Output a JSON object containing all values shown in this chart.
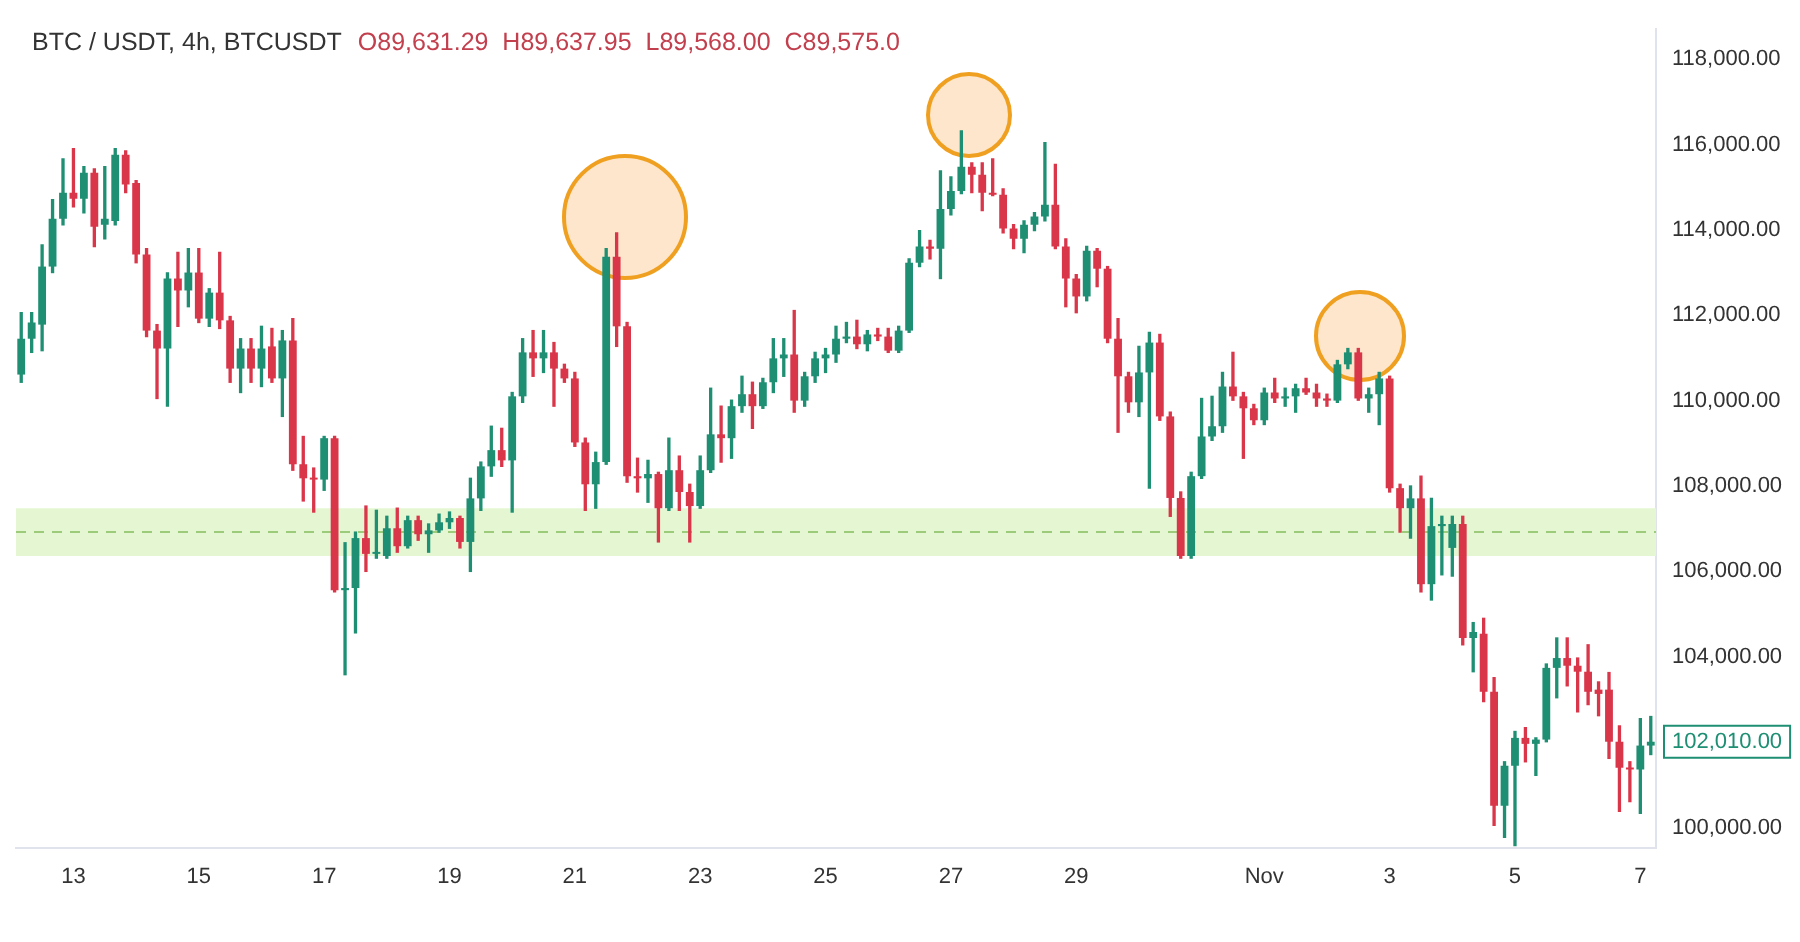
{
  "chart_data": {
    "type": "candlestick",
    "title": "BTC / USDT, 4h, BTCUSDT",
    "subtitle": "O89,631.29  H89,637.95  L89,568.00  C89,575.0",
    "categories": [
      null,
      null,
      null,
      null,
      null,
      "13",
      null,
      null,
      null,
      null,
      null,
      null,
      null,
      null,
      null,
      null,
      null,
      "15",
      null,
      null,
      null,
      null,
      null,
      null,
      null,
      null,
      null,
      null,
      null,
      "17",
      null,
      null,
      null,
      null,
      null,
      null,
      null,
      null,
      null,
      null,
      null,
      "19",
      null,
      null,
      null,
      null,
      null,
      null,
      null,
      null,
      null,
      null,
      null,
      "21",
      null,
      null,
      null,
      null,
      null,
      null,
      null,
      null,
      null,
      null,
      null,
      "23",
      null,
      null,
      null,
      null,
      null,
      null,
      null,
      null,
      null,
      null,
      null,
      "25",
      null,
      null,
      null,
      null,
      null,
      null,
      null,
      null,
      null,
      null,
      null,
      "27",
      null,
      null,
      null,
      null,
      null,
      null,
      null,
      null,
      null,
      null,
      null,
      "29",
      null,
      null,
      null,
      null,
      null,
      null,
      null,
      null,
      null,
      null,
      null,
      null,
      null,
      null,
      null,
      null,
      null,
      "Nov",
      null,
      null,
      null,
      null,
      null,
      null,
      null,
      null,
      null,
      null,
      null,
      "3",
      null,
      null,
      null,
      null,
      null,
      null,
      null,
      null,
      null,
      null,
      null,
      "5",
      null,
      null,
      null,
      null,
      null,
      null,
      null,
      null,
      null,
      null,
      null,
      "7",
      null
    ],
    "colors": [
      "#1f8f73",
      "#1f8f73",
      "#1f8f73",
      "#1f8f73",
      "#1f8f73",
      "#d9364a",
      "#1f8f73",
      "#d9364a",
      "#1f8f73",
      "#1f8f73",
      "#d9364a",
      "#d9364a",
      "#d9364a",
      "#d9364a",
      "#1f8f73",
      "#d9364a",
      "#1f8f73",
      "#d9364a",
      "#1f8f73",
      "#d9364a",
      "#d9364a",
      "#1f8f73",
      "#d9364a",
      "#1f8f73",
      "#d9364a",
      "#1f8f73",
      "#d9364a",
      "#d9364a",
      "#d9364a",
      "#1f8f73",
      "#d9364a",
      "#1f8f73",
      "#1f8f73",
      "#d9364a",
      "#1f8f73",
      "#1f8f73",
      "#d9364a",
      "#1f8f73",
      "#d9364a",
      "#1f8f73",
      "#1f8f73",
      "#1f8f73",
      "#d9364a",
      "#1f8f73",
      "#1f8f73",
      "#1f8f73",
      "#d9364a",
      "#1f8f73",
      "#1f8f73",
      "#d9364a",
      "#1f8f73",
      "#d9364a",
      "#d9364a",
      "#d9364a",
      "#d9364a",
      "#1f8f73",
      "#1f8f73",
      "#d9364a",
      "#d9364a",
      "#d9364a",
      "#1f8f73",
      "#d9364a",
      "#1f8f73",
      "#d9364a",
      "#d9364a",
      "#1f8f73",
      "#1f8f73",
      "#d9364a",
      "#1f8f73",
      "#1f8f73",
      "#d9364a",
      "#1f8f73",
      "#1f8f73",
      "#1f8f73",
      "#d9364a",
      "#1f8f73",
      "#1f8f73",
      "#1f8f73",
      "#1f8f73",
      "#1f8f73",
      "#d9364a",
      "#1f8f73",
      "#d9364a",
      "#d9364a",
      "#1f8f73",
      "#1f8f73",
      "#1f8f73",
      "#d9364a",
      "#1f8f73",
      "#1f8f73",
      "#1f8f73",
      "#d9364a",
      "#d9364a",
      "#d9364a",
      "#d9364a",
      "#d9364a",
      "#1f8f73",
      "#1f8f73",
      "#1f8f73",
      "#d9364a",
      "#d9364a",
      "#d9364a",
      "#1f8f73",
      "#d9364a",
      "#d9364a",
      "#d9364a",
      "#d9364a",
      "#1f8f73",
      "#1f8f73",
      "#d9364a",
      "#d9364a",
      "#d9364a",
      "#1f8f73",
      "#1f8f73",
      "#1f8f73",
      "#1f8f73",
      "#d9364a",
      "#d9364a",
      "#d9364a",
      "#1f8f73",
      "#d9364a",
      "#1f8f73",
      "#1f8f73",
      "#d9364a",
      "#d9364a",
      "#d9364a",
      "#1f8f73",
      "#1f8f73",
      "#d9364a",
      "#1f8f73",
      "#1f8f73",
      "#d9364a",
      "#d9364a",
      "#1f8f73",
      "#d9364a",
      "#1f8f73",
      "#1f8f73",
      "#1f8f73",
      "#d9364a",
      "#1f8f73",
      "#d9364a",
      "#d9364a",
      "#1f8f73",
      "#1f8f73",
      "#d9364a",
      "#1f8f73",
      "#1f8f73",
      "#1f8f73",
      "#d9364a",
      "#d9364a",
      "#d9364a",
      "#d9364a",
      "#d9364a",
      "#d9364a",
      "#d9364a",
      "#1f8f73",
      "#1f8f73"
    ],
    "ohlc": [
      [
        110610,
        112060,
        110430,
        111450
      ],
      [
        111450,
        112060,
        111130,
        111830
      ],
      [
        111780,
        113650,
        111170,
        113140
      ],
      [
        113140,
        114710,
        113000,
        114260
      ],
      [
        114260,
        115660,
        114120,
        114870
      ],
      [
        114870,
        115900,
        114540,
        114730
      ],
      [
        114730,
        115480,
        114400,
        115340
      ],
      [
        115340,
        115430,
        113610,
        114070
      ],
      [
        114120,
        115480,
        113790,
        114260
      ],
      [
        114210,
        115900,
        114120,
        115760
      ],
      [
        115760,
        115850,
        114870,
        115060
      ],
      [
        115100,
        115150,
        113230,
        113420
      ],
      [
        113420,
        113560,
        111500,
        111640
      ],
      [
        111640,
        111780,
        110050,
        111220
      ],
      [
        111220,
        112990,
        109870,
        112860
      ],
      [
        112860,
        113470,
        111740,
        112580
      ],
      [
        112580,
        113560,
        112200,
        113000
      ],
      [
        113000,
        113560,
        111830,
        111920
      ],
      [
        111920,
        112620,
        111740,
        112530
      ],
      [
        112530,
        113470,
        111690,
        111880
      ],
      [
        111880,
        111970,
        110430,
        110750
      ],
      [
        110750,
        111450,
        110190,
        111220
      ],
      [
        111220,
        111450,
        110430,
        110750
      ],
      [
        110750,
        111740,
        110330,
        111220
      ],
      [
        111270,
        111690,
        110430,
        110520
      ],
      [
        110520,
        111640,
        109630,
        111410
      ],
      [
        111410,
        111920,
        108370,
        108510
      ],
      [
        108510,
        109160,
        107650,
        108180
      ],
      [
        108180,
        108420,
        107390,
        108150
      ],
      [
        108150,
        109160,
        107900,
        109120
      ],
      [
        109120,
        109160,
        105520,
        105560
      ],
      [
        105560,
        106670,
        103580,
        105610
      ],
      [
        105610,
        106920,
        104560,
        106780
      ],
      [
        106780,
        107530,
        106000,
        106410
      ],
      [
        106410,
        107430,
        106310,
        106450
      ],
      [
        106360,
        107290,
        106310,
        107010
      ],
      [
        107010,
        107480,
        106450,
        106590
      ],
      [
        106590,
        107290,
        106550,
        107200
      ],
      [
        107200,
        107290,
        106730,
        106870
      ],
      [
        106870,
        107110,
        106450,
        106960
      ],
      [
        106960,
        107340,
        106920,
        107150
      ],
      [
        107150,
        107390,
        107010,
        107250
      ],
      [
        107250,
        107290,
        106550,
        106690
      ],
      [
        106690,
        108180,
        106000,
        107710
      ],
      [
        107710,
        108560,
        107430,
        108460
      ],
      [
        108460,
        109400,
        108230,
        108840
      ],
      [
        108840,
        109350,
        108460,
        108600
      ],
      [
        108600,
        110190,
        107390,
        110100
      ],
      [
        110100,
        111450,
        109960,
        111130
      ],
      [
        111130,
        111640,
        110570,
        110990
      ],
      [
        110990,
        111640,
        110660,
        111130
      ],
      [
        111130,
        111360,
        109870,
        110750
      ],
      [
        110750,
        110850,
        110430,
        110520
      ],
      [
        110520,
        110660,
        108930,
        109020
      ],
      [
        109020,
        109120,
        107430,
        108040
      ],
      [
        108040,
        108790,
        107480,
        108560
      ],
      [
        108560,
        113560,
        108510,
        113370
      ],
      [
        113370,
        113930,
        111270,
        111740
      ],
      [
        111740,
        111830,
        108090,
        108230
      ],
      [
        108230,
        108650,
        107860,
        108180
      ],
      [
        108180,
        108600,
        107620,
        108280
      ],
      [
        108280,
        108320,
        106690,
        107480
      ],
      [
        107480,
        109120,
        107430,
        108370
      ],
      [
        108370,
        108700,
        107430,
        107860
      ],
      [
        107860,
        108040,
        106690,
        107530
      ],
      [
        107530,
        108700,
        107480,
        108370
      ],
      [
        108370,
        110290,
        108320,
        109210
      ],
      [
        109210,
        109870,
        108560,
        109120
      ],
      [
        109120,
        110010,
        108650,
        109870
      ],
      [
        109870,
        110570,
        109730,
        110150
      ],
      [
        110150,
        110430,
        109350,
        109870
      ],
      [
        109870,
        110520,
        109820,
        110430
      ],
      [
        110430,
        111450,
        110190,
        110990
      ],
      [
        110990,
        111450,
        110570,
        111080
      ],
      [
        111080,
        112110,
        109730,
        110000
      ],
      [
        110000,
        110660,
        109870,
        110570
      ],
      [
        110570,
        111130,
        110430,
        110990
      ],
      [
        110990,
        111220,
        110660,
        111080
      ],
      [
        111080,
        111740,
        110900,
        111450
      ],
      [
        111450,
        111830,
        111360,
        111500
      ],
      [
        111500,
        111880,
        111220,
        111320
      ],
      [
        111320,
        111640,
        111170,
        111550
      ],
      [
        111550,
        111690,
        111410,
        111500
      ],
      [
        111500,
        111690,
        111130,
        111170
      ],
      [
        111170,
        111740,
        111130,
        111640
      ],
      [
        111640,
        113320,
        111600,
        113230
      ],
      [
        113230,
        113980,
        113140,
        113610
      ],
      [
        113610,
        113750,
        113320,
        113560
      ],
      [
        113560,
        115380,
        112860,
        114490
      ],
      [
        114490,
        115240,
        114350,
        114910
      ],
      [
        114910,
        116320,
        114850,
        115480
      ],
      [
        115480,
        115570,
        114870,
        115290
      ],
      [
        115290,
        115570,
        114450,
        114870
      ],
      [
        114870,
        115660,
        114800,
        114820
      ],
      [
        114820,
        114960,
        113930,
        114030
      ],
      [
        114030,
        114120,
        113560,
        113790
      ],
      [
        113790,
        114210,
        113470,
        114120
      ],
      [
        114120,
        114400,
        113980,
        114310
      ],
      [
        114310,
        116040,
        114210,
        114590
      ],
      [
        114590,
        115530,
        113560,
        113610
      ],
      [
        113610,
        113790,
        112200,
        112860
      ],
      [
        112860,
        112950,
        112060,
        112440
      ],
      [
        112440,
        113610,
        112340,
        113510
      ],
      [
        113510,
        113560,
        112670,
        113090
      ],
      [
        113090,
        113140,
        111360,
        111450
      ],
      [
        111450,
        111920,
        109260,
        110570
      ],
      [
        110570,
        110660,
        109730,
        109960
      ],
      [
        109960,
        111270,
        109630,
        110660
      ],
      [
        110660,
        111600,
        107950,
        111360
      ],
      [
        111360,
        111550,
        109540,
        109630
      ],
      [
        109630,
        109730,
        107290,
        107720
      ],
      [
        107720,
        107860,
        106310,
        106360
      ],
      [
        106360,
        108320,
        106310,
        108230
      ],
      [
        108230,
        110050,
        108180,
        109160
      ],
      [
        109160,
        110100,
        109070,
        109400
      ],
      [
        109400,
        110660,
        109260,
        110330
      ],
      [
        110330,
        111130,
        110010,
        110100
      ],
      [
        110100,
        110190,
        108650,
        109820
      ],
      [
        109820,
        109910,
        109440,
        109540
      ],
      [
        109540,
        110290,
        109440,
        110190
      ],
      [
        110190,
        110520,
        109960,
        110050
      ],
      [
        110050,
        110290,
        109870,
        110100
      ],
      [
        110100,
        110380,
        109730,
        110290
      ],
      [
        110290,
        110520,
        110150,
        110190
      ],
      [
        110190,
        110380,
        109870,
        110050
      ],
      [
        110050,
        110150,
        109870,
        110000
      ],
      [
        110000,
        110940,
        109960,
        110850
      ],
      [
        110850,
        111220,
        110750,
        111130
      ],
      [
        111130,
        111220,
        110010,
        110050
      ],
      [
        110050,
        110290,
        109730,
        110150
      ],
      [
        110150,
        110660,
        109440,
        110520
      ],
      [
        110520,
        110570,
        107860,
        107950
      ],
      [
        107950,
        108040,
        106920,
        107480
      ],
      [
        107480,
        108000,
        106780,
        107710
      ],
      [
        107710,
        108230,
        105520,
        105700
      ],
      [
        105700,
        107710,
        105330,
        107060
      ],
      [
        107060,
        107290,
        105920,
        107110
      ],
      [
        106550,
        107290,
        105890,
        107110
      ],
      [
        107110,
        107290,
        104280,
        104440
      ],
      [
        104440,
        104800,
        103650,
        104580
      ],
      [
        104540,
        104900,
        102950,
        103180
      ],
      [
        103180,
        103510,
        100050,
        100510
      ],
      [
        100510,
        101540,
        99770,
        101450
      ],
      [
        101450,
        102250,
        99580,
        102100
      ],
      [
        102100,
        102340,
        101540,
        101960
      ],
      [
        101960,
        102100,
        101220,
        102060
      ],
      [
        102060,
        103830,
        102010,
        103740
      ],
      [
        103740,
        104440,
        103040,
        103970
      ],
      [
        103970,
        104440,
        103320,
        103790
      ],
      [
        103790,
        103970,
        102710,
        103650
      ],
      [
        103650,
        104280,
        102880,
        103180
      ],
      [
        103230,
        103410,
        102620,
        103130
      ],
      [
        103230,
        103630,
        101620,
        102010
      ],
      [
        102010,
        102380,
        100380,
        101400
      ],
      [
        101400,
        101540,
        100610,
        101360
      ],
      [
        101360,
        102550,
        100330,
        101920
      ],
      [
        101920,
        102600,
        101710,
        102010
      ]
    ],
    "ylim": [
      99530,
      118700
    ],
    "yticks": [
      {
        "value": 100000,
        "label": "100,000.00"
      },
      {
        "value": 104000,
        "label": "104,000.00"
      },
      {
        "value": 106000,
        "label": "106,000.00"
      },
      {
        "value": 108000,
        "label": "108,000.00"
      },
      {
        "value": 110000,
        "label": "110,000.00"
      },
      {
        "value": 112000,
        "label": "112,000.00"
      },
      {
        "value": 114000,
        "label": "114,000.00"
      },
      {
        "value": 116000,
        "label": "116,000.00"
      },
      {
        "value": 118000,
        "label": "118,000.00"
      }
    ],
    "bands": [
      {
        "axis": "y",
        "from": 106360,
        "to": 107480,
        "color": "#e4f7d2"
      }
    ],
    "ref_lines": [
      {
        "axis": "y",
        "value": 106920,
        "color": "#9ccc7a",
        "line_style": "dashed"
      }
    ],
    "annotations": [
      "102,010.00"
    ],
    "grid": false,
    "legend": false
  }
}
